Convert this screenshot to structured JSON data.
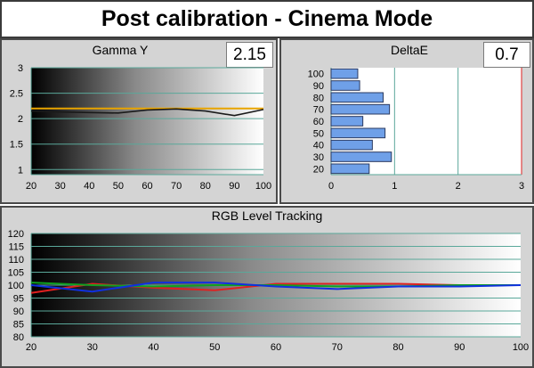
{
  "title": "Post calibration - Cinema Mode",
  "colors": {
    "gamma_line": "#1a1a1a",
    "target_line": "#e8a400",
    "bar_fill": "#6fa0e8",
    "red": "#e02020",
    "green": "#10a020",
    "blue": "#1030e0"
  },
  "chart_data": [
    {
      "type": "line",
      "title": "Gamma Y",
      "value_box": "2.15",
      "xlim": [
        20,
        100
      ],
      "ylim": [
        0.9,
        3.0
      ],
      "x_ticks": [
        "20",
        "30",
        "40",
        "50",
        "60",
        "70",
        "80",
        "90",
        "100"
      ],
      "y_ticks": [
        "3",
        "2.5",
        "2",
        "1.5",
        "1"
      ],
      "series": [
        {
          "x": [
            20,
            30,
            40,
            50,
            60,
            70,
            80,
            90,
            100
          ],
          "values": [
            2.15,
            2.13,
            2.12,
            2.11,
            2.17,
            2.19,
            2.15,
            2.06,
            2.18
          ]
        }
      ],
      "target": 2.2
    },
    {
      "type": "bar",
      "orientation": "horizontal",
      "title": "DeltaE",
      "value_box": "0.7",
      "categories": [
        "20",
        "30",
        "40",
        "50",
        "60",
        "70",
        "80",
        "90",
        "100"
      ],
      "values": [
        0.6,
        0.95,
        0.65,
        0.85,
        0.5,
        0.92,
        0.82,
        0.45,
        0.42
      ],
      "xlim": [
        0,
        3
      ],
      "x_ticks": [
        "0",
        "1",
        "2",
        "3"
      ],
      "y_ticks": [
        "100",
        "90",
        "80",
        "70",
        "60",
        "50",
        "40",
        "30",
        "20"
      ]
    },
    {
      "type": "line",
      "title": "RGB Level Tracking",
      "xlim": [
        20,
        100
      ],
      "ylim": [
        80,
        120
      ],
      "x_ticks": [
        "20",
        "30",
        "40",
        "50",
        "60",
        "70",
        "80",
        "90",
        "100"
      ],
      "y_ticks": [
        "120",
        "115",
        "110",
        "105",
        "100",
        "95",
        "90",
        "85",
        "80"
      ],
      "x": [
        20,
        30,
        40,
        50,
        60,
        70,
        80,
        90,
        100
      ],
      "series": [
        {
          "color": "red",
          "values": [
            97,
            100.5,
            99,
            98,
            100.5,
            100.5,
            100.5,
            100,
            100
          ]
        },
        {
          "color": "green",
          "values": [
            101,
            100,
            99.5,
            100,
            100,
            99.5,
            99.5,
            100,
            100
          ]
        },
        {
          "color": "blue",
          "values": [
            100,
            97.5,
            101,
            101,
            99.5,
            98.5,
            99.5,
            99.5,
            100
          ]
        }
      ]
    }
  ]
}
